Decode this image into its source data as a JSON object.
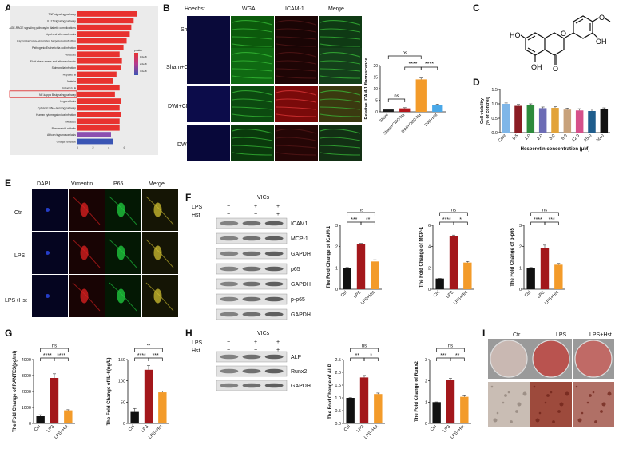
{
  "panels": {
    "A": "A",
    "B": "B",
    "C": "C",
    "D": "D",
    "E": "E",
    "F": "F",
    "G": "G",
    "H": "H",
    "I": "I"
  },
  "panelA": {
    "chart_data": {
      "type": "bar",
      "orientation": "horizontal",
      "categories": [
        "TNF signaling pathway",
        "IL-17 signaling pathway",
        "AGE-RAGE signaling pathway in diabetic complications",
        "Lipid and atherosclerosis",
        "Kaposi sarcoma-associated herpesvirus infection",
        "Pathogenic Escherichia coli infection",
        "Pertussis",
        "Fluid shear stress and atherosclerosis",
        "Salmonella infection",
        "Hepatitis B",
        "Malaria",
        "Influenza A",
        "NF-kappa B signaling pathway",
        "Legionellosis",
        "Cytosolic DNA-sensing pathway",
        "Human cytomegalovirus infection",
        "Measles",
        "Rheumatoid arthritis",
        "African trypanosomiasis",
        "Chagas disease"
      ],
      "values": [
        7.6,
        7.2,
        6.9,
        6.7,
        6.3,
        5.9,
        5.4,
        5.7,
        5.6,
        5.0,
        4.6,
        5.4,
        4.8,
        5.6,
        5.4,
        5.6,
        5.4,
        5.4,
        4.3,
        4.6
      ],
      "xticks": [
        "0",
        "2",
        "4",
        "6"
      ],
      "xlim": [
        0,
        8.5
      ],
      "highlighted": "NF-kappa B signaling pathway",
      "legend_title": "pvalue",
      "legend_ticks": [
        "1.0e-8",
        "2.0e-8",
        "3.0e-8"
      ],
      "colors": [
        "#e8322f",
        "#e8322f",
        "#e8322f",
        "#e8322f",
        "#e8322f",
        "#e8322f",
        "#e8322f",
        "#e8322f",
        "#e8322f",
        "#e8322f",
        "#e8322f",
        "#e8322f",
        "#e8322f",
        "#e8322f",
        "#e8322f",
        "#e8322f",
        "#e8322f",
        "#e8322f",
        "#8b4fb0",
        "#3a55b4"
      ]
    }
  },
  "panelB": {
    "columns": [
      "Hoechst",
      "WGA",
      "ICAM-1",
      "Merge"
    ],
    "rows": [
      "Sham",
      "Sham+CMC-Na",
      "DWI+CMC-Na",
      "DWI+Hst"
    ],
    "chart_data": {
      "type": "bar",
      "categories": [
        "Sham",
        "Sham+CMC-Na",
        "DWI+CMC-Na",
        "DWI+Hst"
      ],
      "values": [
        1.0,
        1.5,
        14.0,
        3.0
      ],
      "errors": [
        0.2,
        0.3,
        0.6,
        0.3
      ],
      "colors": [
        "#1a1a1a",
        "#b3161b",
        "#f39b2a",
        "#4aa8e8"
      ],
      "ylabel": "Relative ICAM-1 fluorescence",
      "ylim": [
        0,
        20
      ],
      "yticks": [
        "0",
        "5",
        "10",
        "15",
        "20"
      ],
      "significance": [
        "ns",
        "ns",
        "****",
        "****"
      ]
    }
  },
  "panelC": {
    "labels": [
      "HO",
      "OH",
      "OH",
      "O",
      "O",
      "O"
    ]
  },
  "panelD": {
    "chart_data": {
      "type": "bar",
      "categories": [
        "Cont",
        "0.5",
        "1.0",
        "2.0",
        "3.0",
        "6.0",
        "12.0",
        "25.0",
        "50.0"
      ],
      "values": [
        1.0,
        0.93,
        0.97,
        0.85,
        0.86,
        0.8,
        0.77,
        0.75,
        0.82
      ],
      "errors": [
        0.03,
        0.05,
        0.03,
        0.04,
        0.04,
        0.05,
        0.06,
        0.07,
        0.04
      ],
      "colors": [
        "#7fb6e8",
        "#8b1c23",
        "#2e8b3c",
        "#6c6cb5",
        "#e2a33a",
        "#c8a27b",
        "#d6508a",
        "#1f5d8c",
        "#111111"
      ],
      "ylabel": "Cell viability\n(% of control)",
      "xlabel": "Hesperetin concentration (μM)",
      "ylim": [
        0,
        1.5
      ],
      "yticks": [
        "0.0",
        "0.5",
        "1.0",
        "1.5"
      ]
    }
  },
  "panelE": {
    "columns": [
      "DAPI",
      "Vimentin",
      "P65",
      "Merge"
    ],
    "rows": [
      "Ctr",
      "LPS",
      "LPS+Hst"
    ]
  },
  "panelF": {
    "blot_header": "VICs",
    "treatments": [
      {
        "label": "LPS",
        "marks": [
          "−",
          "+",
          "+"
        ]
      },
      {
        "label": "Hst",
        "marks": [
          "−",
          "−",
          "+"
        ]
      }
    ],
    "bands": [
      "ICAM1",
      "MCP-1",
      "GAPDH",
      "p65",
      "GAPDH",
      "p-p65",
      "GAPDH"
    ],
    "charts": [
      {
        "type": "bar",
        "categories": [
          "Ctrl",
          "LPS",
          "LPS+Hst"
        ],
        "values": [
          1.0,
          2.1,
          1.3
        ],
        "errors": [
          0.02,
          0.05,
          0.08
        ],
        "colors": [
          "#111111",
          "#a3171b",
          "#f39b2a"
        ],
        "ylabel": "The Fold Change of ICAM-1",
        "ylim": [
          0,
          3
        ],
        "yticks": [
          "0",
          "1",
          "2",
          "3"
        ],
        "significance": [
          "ns",
          "***",
          "**"
        ]
      },
      {
        "type": "bar",
        "categories": [
          "Ctrl",
          "LPS",
          "LPS+Hst"
        ],
        "values": [
          1.0,
          5.0,
          2.5
        ],
        "errors": [
          0.02,
          0.08,
          0.1
        ],
        "colors": [
          "#111111",
          "#a3171b",
          "#f39b2a"
        ],
        "ylabel": "The Fold Change of MCP-1",
        "ylim": [
          0,
          6
        ],
        "yticks": [
          "0",
          "2",
          "4",
          "6"
        ],
        "significance": [
          "ns",
          "****",
          "*"
        ]
      },
      {
        "type": "bar",
        "categories": [
          "Ctrl",
          "LPS",
          "LPS+Hst"
        ],
        "values": [
          1.0,
          1.95,
          1.15
        ],
        "errors": [
          0.02,
          0.12,
          0.06
        ],
        "colors": [
          "#111111",
          "#a3171b",
          "#f39b2a"
        ],
        "ylabel": "The Fold Change of p-p65",
        "ylim": [
          0,
          3
        ],
        "yticks": [
          "0",
          "1",
          "2",
          "3"
        ],
        "significance": [
          "ns",
          "****",
          "***"
        ]
      }
    ]
  },
  "panelG": {
    "charts": [
      {
        "type": "bar",
        "categories": [
          "Ctrl",
          "LPS",
          "LPS+Hst"
        ],
        "values": [
          450,
          2850,
          820
        ],
        "errors": [
          90,
          260,
          40
        ],
        "colors": [
          "#111111",
          "#a3171b",
          "#f39b2a"
        ],
        "ylabel": "The Fold Change of RANTES(pg/ml)",
        "ylim": [
          0,
          4000
        ],
        "yticks": [
          "0",
          "1000",
          "2000",
          "3000",
          "4000"
        ],
        "significance": [
          "ns",
          "****",
          "****"
        ]
      },
      {
        "type": "bar",
        "categories": [
          "Ctrl",
          "LPS",
          "LPS+Hst"
        ],
        "values": [
          27,
          126,
          73
        ],
        "errors": [
          8,
          10,
          3
        ],
        "colors": [
          "#111111",
          "#a3171b",
          "#f39b2a"
        ],
        "ylabel": "The Fold Change of IL-6(ng/L)",
        "ylim": [
          0,
          150
        ],
        "yticks": [
          "0",
          "50",
          "100",
          "150"
        ],
        "significance": [
          "**",
          "****",
          "***"
        ]
      }
    ]
  },
  "panelH": {
    "blot_header": "VICs",
    "treatments": [
      {
        "label": "LPS",
        "marks": [
          "−",
          "+",
          "+"
        ]
      },
      {
        "label": "Hst",
        "marks": [
          "−",
          "−",
          "+"
        ]
      }
    ],
    "bands": [
      "ALP",
      "Runx2",
      "GAPDH"
    ],
    "charts": [
      {
        "type": "bar",
        "categories": [
          "Ctrl",
          "LPS",
          "LPS+Hst"
        ],
        "values": [
          1.0,
          1.8,
          1.15
        ],
        "errors": [
          0.01,
          0.08,
          0.04
        ],
        "colors": [
          "#111111",
          "#a3171b",
          "#f39b2a"
        ],
        "ylabel": "The Fold Change of ALP",
        "ylim": [
          0,
          2.5
        ],
        "yticks": [
          "0.0",
          "0.5",
          "1.0",
          "1.5",
          "2.0",
          "2.5"
        ],
        "significance": [
          "ns",
          "**",
          "*"
        ]
      },
      {
        "type": "bar",
        "categories": [
          "Ctrl",
          "LPS",
          "LPS+Hst"
        ],
        "values": [
          1.0,
          2.05,
          1.25
        ],
        "errors": [
          0.01,
          0.07,
          0.05
        ],
        "colors": [
          "#111111",
          "#a3171b",
          "#f39b2a"
        ],
        "ylabel": "The Fold Change of Runx2",
        "ylim": [
          0,
          3
        ],
        "yticks": [
          "0",
          "1",
          "2",
          "3"
        ],
        "significance": [
          "ns",
          "***",
          "**"
        ]
      }
    ]
  },
  "panelI": {
    "columns": [
      "Ctr",
      "LPS",
      "LPS+Hst"
    ]
  }
}
